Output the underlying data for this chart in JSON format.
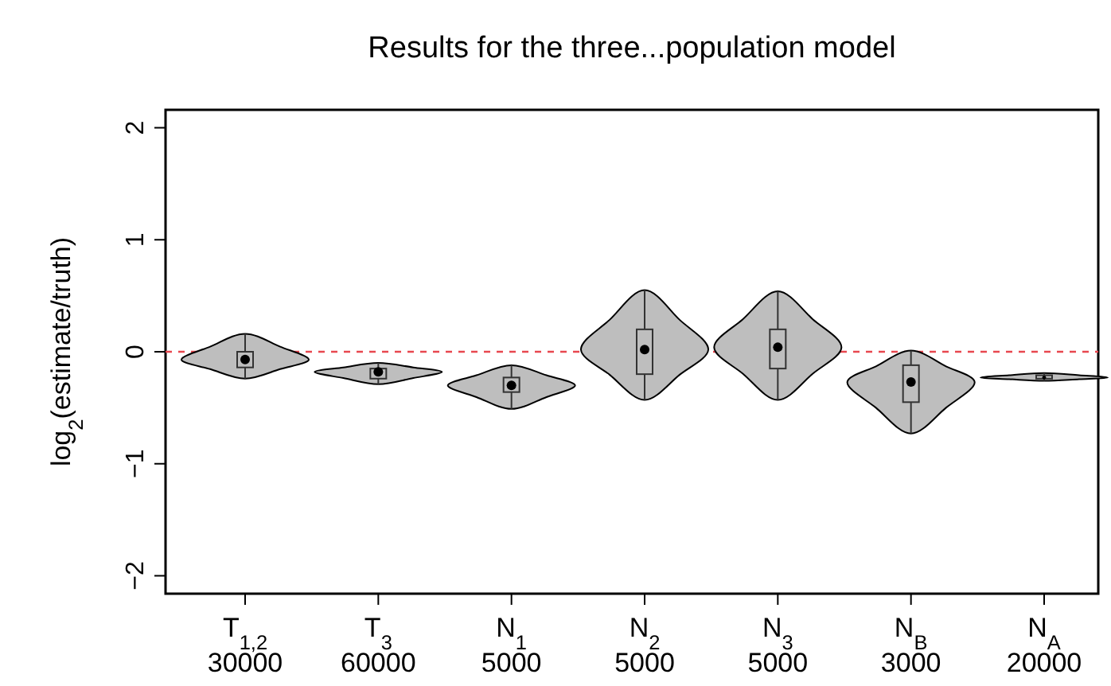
{
  "chart_data": {
    "type": "box",
    "title": "Results for the three...population model",
    "ylabel": "log$_{2}$(estimate/truth)",
    "categories": [
      "T$_{1,2}$\n30000",
      "T$_{3}$\n60000",
      "N$_{1}$\n5000",
      "N$_{2}$\n5000",
      "N$_{3}$\n5000",
      "N$_{B}$\n3000",
      "N$_{A}$\n20000"
    ],
    "color": "#bebebe",
    "boxes": [
      {
        "low": -0.24,
        "q1": -0.14,
        "median": -0.07,
        "q3": 0.0,
        "high": 0.16
      },
      {
        "low": -0.29,
        "q1": -0.24,
        "median": -0.18,
        "q3": -0.15,
        "high": -0.1
      },
      {
        "low": -0.51,
        "q1": -0.36,
        "median": -0.3,
        "q3": -0.23,
        "high": -0.12
      },
      {
        "low": -0.43,
        "q1": -0.2,
        "median": 0.02,
        "q3": 0.2,
        "high": 0.55
      },
      {
        "low": -0.43,
        "q1": -0.15,
        "median": 0.04,
        "q3": 0.2,
        "high": 0.54
      },
      {
        "low": -0.73,
        "q1": -0.45,
        "median": -0.27,
        "q3": -0.12,
        "high": 0.01
      },
      {
        "low": -0.26,
        "q1": -0.24,
        "median": -0.23,
        "q3": -0.21,
        "high": -0.19
      }
    ],
    "ylim": [
      -2.16,
      2.16
    ],
    "yticks": [
      {
        "value": -2,
        "label": "−2"
      },
      {
        "value": -1,
        "label": "−1"
      },
      0,
      1,
      2
    ],
    "ref_lines": [
      {
        "axis": "y",
        "value": 0,
        "color": "#e8474f",
        "line_style": "dashed"
      }
    ]
  }
}
